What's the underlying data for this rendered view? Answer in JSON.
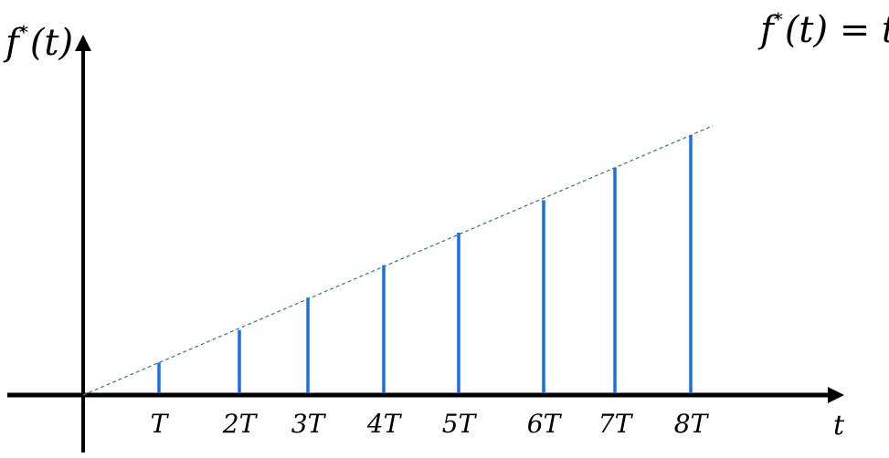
{
  "labels": {
    "y_axis_f": "f",
    "y_axis_star": "*",
    "y_axis_arg": "(t)",
    "equation_f": "f",
    "equation_star": "*",
    "equation_rest": "(t) = t",
    "x_axis": "t"
  },
  "ticks": [
    "T",
    "2T",
    "3T",
    "4T",
    "5T",
    "6T",
    "7T",
    "8T"
  ],
  "chart_data": {
    "type": "line",
    "x_label": "t",
    "y_label": "f*(t)",
    "equation": "f*(t) = t",
    "samples": [
      {
        "k": 1,
        "x": "T",
        "value": 1
      },
      {
        "k": 2,
        "x": "2T",
        "value": 2
      },
      {
        "k": 3,
        "x": "3T",
        "value": 3
      },
      {
        "k": 4,
        "x": "4T",
        "value": 4
      },
      {
        "k": 5,
        "x": "5T",
        "value": 5
      },
      {
        "k": 6,
        "x": "6T",
        "value": 6
      },
      {
        "k": 7,
        "x": "7T",
        "value": 7
      },
      {
        "k": 8,
        "x": "8T",
        "value": 8
      }
    ],
    "colors": {
      "impulse": "#1a6fe6",
      "envelope": "#3a8a6a",
      "axes": "#000000"
    }
  }
}
